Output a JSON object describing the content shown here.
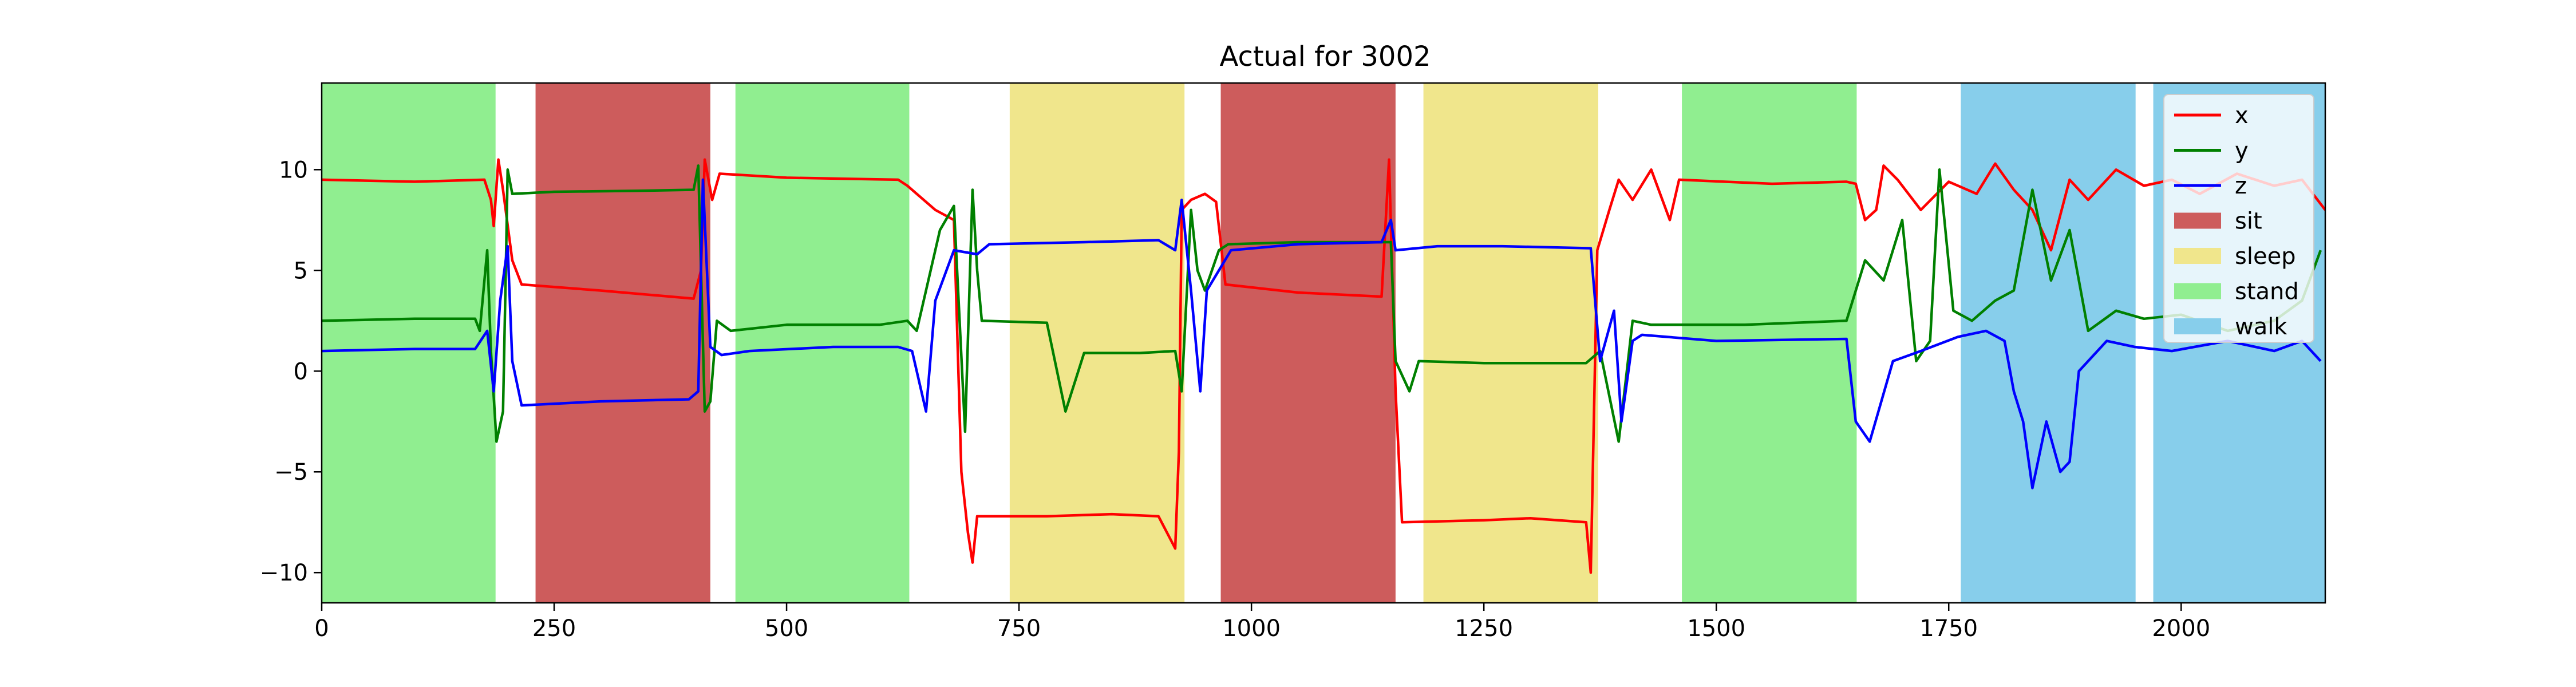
{
  "chart_data": {
    "type": "line",
    "title": "Actual for 3002",
    "xlabel": "",
    "ylabel": "",
    "xlim": [
      0,
      2155
    ],
    "ylim": [
      -11.5,
      14.3
    ],
    "xticks": [
      0,
      250,
      500,
      750,
      1000,
      1250,
      1500,
      1750,
      2000
    ],
    "yticks": [
      -10,
      -5,
      0,
      5,
      10
    ],
    "grid": false,
    "legend_placement": "top-right",
    "activity_colors": {
      "sit": "#cd5c5c",
      "sleep": "#f0e68c",
      "stand": "#90ee90",
      "walk": "#87ceeb"
    },
    "activity_spans": [
      {
        "label": "stand",
        "start": 0,
        "end": 187
      },
      {
        "label": "sit",
        "start": 230,
        "end": 418
      },
      {
        "label": "stand",
        "start": 445,
        "end": 632
      },
      {
        "label": "sleep",
        "start": 740,
        "end": 928
      },
      {
        "label": "sit",
        "start": 967,
        "end": 1155
      },
      {
        "label": "sleep",
        "start": 1185,
        "end": 1373
      },
      {
        "label": "stand",
        "start": 1463,
        "end": 1651
      },
      {
        "label": "walk",
        "start": 1763,
        "end": 1951
      },
      {
        "label": "walk",
        "start": 1970,
        "end": 2155
      }
    ],
    "series": [
      {
        "name": "x",
        "color": "#ff0000",
        "points": [
          [
            0,
            9.5
          ],
          [
            100,
            9.4
          ],
          [
            175,
            9.5
          ],
          [
            182,
            8.5
          ],
          [
            185,
            7.2
          ],
          [
            190,
            10.5
          ],
          [
            195,
            9.0
          ],
          [
            205,
            5.5
          ],
          [
            215,
            4.3
          ],
          [
            300,
            4.0
          ],
          [
            400,
            3.6
          ],
          [
            408,
            5.0
          ],
          [
            412,
            10.5
          ],
          [
            420,
            8.5
          ],
          [
            428,
            9.8
          ],
          [
            500,
            9.6
          ],
          [
            620,
            9.5
          ],
          [
            630,
            9.2
          ],
          [
            640,
            8.8
          ],
          [
            660,
            8.0
          ],
          [
            680,
            7.5
          ],
          [
            688,
            -5.0
          ],
          [
            695,
            -8.0
          ],
          [
            700,
            -9.5
          ],
          [
            705,
            -7.2
          ],
          [
            780,
            -7.2
          ],
          [
            850,
            -7.1
          ],
          [
            900,
            -7.2
          ],
          [
            918,
            -8.8
          ],
          [
            922,
            -4.0
          ],
          [
            925,
            8.0
          ],
          [
            935,
            8.5
          ],
          [
            950,
            8.8
          ],
          [
            962,
            8.4
          ],
          [
            972,
            4.3
          ],
          [
            1050,
            3.9
          ],
          [
            1140,
            3.7
          ],
          [
            1148,
            10.5
          ],
          [
            1155,
            -1.0
          ],
          [
            1162,
            -7.5
          ],
          [
            1250,
            -7.4
          ],
          [
            1300,
            -7.3
          ],
          [
            1360,
            -7.5
          ],
          [
            1365,
            -10.0
          ],
          [
            1372,
            6.0
          ],
          [
            1385,
            8.0
          ],
          [
            1395,
            9.5
          ],
          [
            1410,
            8.5
          ],
          [
            1430,
            10.0
          ],
          [
            1450,
            7.5
          ],
          [
            1460,
            9.5
          ],
          [
            1560,
            9.3
          ],
          [
            1640,
            9.4
          ],
          [
            1650,
            9.3
          ],
          [
            1660,
            7.5
          ],
          [
            1672,
            8.0
          ],
          [
            1680,
            10.2
          ],
          [
            1695,
            9.5
          ],
          [
            1720,
            8.0
          ],
          [
            1750,
            9.4
          ],
          [
            1780,
            8.8
          ],
          [
            1800,
            10.3
          ],
          [
            1820,
            9.0
          ],
          [
            1840,
            8.0
          ],
          [
            1860,
            6.0
          ],
          [
            1880,
            9.5
          ],
          [
            1900,
            8.5
          ],
          [
            1930,
            10.0
          ],
          [
            1960,
            9.2
          ],
          [
            1990,
            9.5
          ],
          [
            2020,
            8.8
          ],
          [
            2060,
            9.8
          ],
          [
            2100,
            9.2
          ],
          [
            2130,
            9.5
          ],
          [
            2155,
            8.0
          ]
        ]
      },
      {
        "name": "y",
        "color": "#008000",
        "points": [
          [
            0,
            2.5
          ],
          [
            100,
            2.6
          ],
          [
            165,
            2.6
          ],
          [
            170,
            2.0
          ],
          [
            178,
            6.0
          ],
          [
            182,
            1.0
          ],
          [
            188,
            -3.5
          ],
          [
            195,
            -2.0
          ],
          [
            198,
            5.0
          ],
          [
            200,
            10.0
          ],
          [
            205,
            8.8
          ],
          [
            250,
            8.9
          ],
          [
            340,
            8.95
          ],
          [
            400,
            9.0
          ],
          [
            405,
            10.2
          ],
          [
            412,
            -2.0
          ],
          [
            418,
            -1.5
          ],
          [
            425,
            2.5
          ],
          [
            440,
            2.0
          ],
          [
            500,
            2.3
          ],
          [
            600,
            2.3
          ],
          [
            630,
            2.5
          ],
          [
            640,
            2.0
          ],
          [
            665,
            7.0
          ],
          [
            680,
            8.2
          ],
          [
            692,
            -3.0
          ],
          [
            700,
            9.0
          ],
          [
            705,
            5.0
          ],
          [
            710,
            2.5
          ],
          [
            780,
            2.4
          ],
          [
            800,
            -2.0
          ],
          [
            820,
            0.9
          ],
          [
            880,
            0.9
          ],
          [
            918,
            1.0
          ],
          [
            925,
            -1.0
          ],
          [
            935,
            8.0
          ],
          [
            942,
            5.0
          ],
          [
            950,
            4.0
          ],
          [
            965,
            6.0
          ],
          [
            975,
            6.3
          ],
          [
            1050,
            6.4
          ],
          [
            1150,
            6.4
          ],
          [
            1155,
            0.5
          ],
          [
            1170,
            -1.0
          ],
          [
            1180,
            0.5
          ],
          [
            1250,
            0.4
          ],
          [
            1360,
            0.4
          ],
          [
            1375,
            1.0
          ],
          [
            1395,
            -3.5
          ],
          [
            1410,
            2.5
          ],
          [
            1430,
            2.3
          ],
          [
            1530,
            2.3
          ],
          [
            1640,
            2.5
          ],
          [
            1660,
            5.5
          ],
          [
            1680,
            4.5
          ],
          [
            1700,
            7.5
          ],
          [
            1715,
            0.5
          ],
          [
            1730,
            1.5
          ],
          [
            1740,
            10.0
          ],
          [
            1755,
            3.0
          ],
          [
            1775,
            2.5
          ],
          [
            1800,
            3.5
          ],
          [
            1820,
            4.0
          ],
          [
            1840,
            9.0
          ],
          [
            1860,
            4.5
          ],
          [
            1880,
            7.0
          ],
          [
            1900,
            2.0
          ],
          [
            1930,
            3.0
          ],
          [
            1960,
            2.6
          ],
          [
            2000,
            2.8
          ],
          [
            2050,
            2.0
          ],
          [
            2100,
            2.5
          ],
          [
            2130,
            3.5
          ],
          [
            2150,
            6.0
          ]
        ]
      },
      {
        "name": "z",
        "color": "#0000ff",
        "points": [
          [
            0,
            1.0
          ],
          [
            100,
            1.1
          ],
          [
            165,
            1.1
          ],
          [
            178,
            2.0
          ],
          [
            185,
            -1.0
          ],
          [
            192,
            3.5
          ],
          [
            200,
            6.2
          ],
          [
            205,
            0.5
          ],
          [
            215,
            -1.7
          ],
          [
            300,
            -1.5
          ],
          [
            395,
            -1.4
          ],
          [
            405,
            -1.0
          ],
          [
            410,
            9.5
          ],
          [
            418,
            1.2
          ],
          [
            430,
            0.8
          ],
          [
            460,
            1.0
          ],
          [
            550,
            1.2
          ],
          [
            620,
            1.2
          ],
          [
            635,
            1.0
          ],
          [
            650,
            -2.0
          ],
          [
            660,
            3.5
          ],
          [
            680,
            6.0
          ],
          [
            705,
            5.8
          ],
          [
            718,
            6.3
          ],
          [
            820,
            6.4
          ],
          [
            900,
            6.5
          ],
          [
            918,
            6.0
          ],
          [
            925,
            8.5
          ],
          [
            935,
            4.0
          ],
          [
            945,
            -1.0
          ],
          [
            952,
            4.0
          ],
          [
            965,
            5.0
          ],
          [
            978,
            6.0
          ],
          [
            1050,
            6.3
          ],
          [
            1140,
            6.4
          ],
          [
            1150,
            7.5
          ],
          [
            1155,
            6.0
          ],
          [
            1200,
            6.2
          ],
          [
            1270,
            6.2
          ],
          [
            1365,
            6.1
          ],
          [
            1375,
            0.5
          ],
          [
            1390,
            3.0
          ],
          [
            1398,
            -2.5
          ],
          [
            1410,
            1.5
          ],
          [
            1420,
            1.8
          ],
          [
            1500,
            1.5
          ],
          [
            1640,
            1.6
          ],
          [
            1650,
            -2.5
          ],
          [
            1665,
            -3.5
          ],
          [
            1690,
            0.5
          ],
          [
            1720,
            1.0
          ],
          [
            1760,
            1.7
          ],
          [
            1790,
            2.0
          ],
          [
            1810,
            1.5
          ],
          [
            1820,
            -1.0
          ],
          [
            1830,
            -2.5
          ],
          [
            1840,
            -5.8
          ],
          [
            1855,
            -2.5
          ],
          [
            1870,
            -5.0
          ],
          [
            1880,
            -4.5
          ],
          [
            1890,
            0.0
          ],
          [
            1920,
            1.5
          ],
          [
            1950,
            1.2
          ],
          [
            1990,
            1.0
          ],
          [
            2050,
            1.5
          ],
          [
            2100,
            1.0
          ],
          [
            2130,
            1.5
          ],
          [
            2150,
            0.5
          ]
        ]
      }
    ]
  }
}
